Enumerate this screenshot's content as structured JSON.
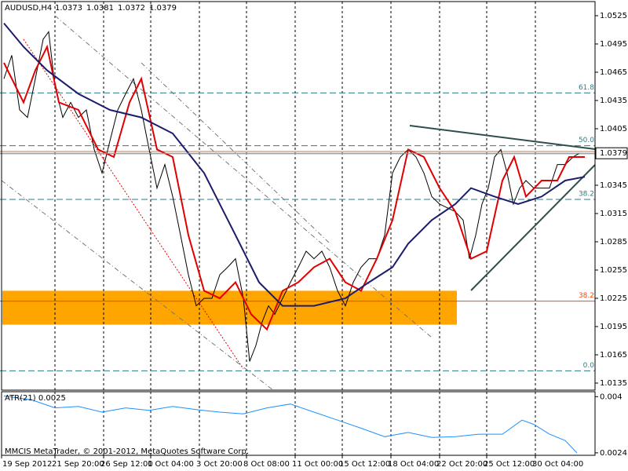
{
  "chart_data": {
    "type": "line",
    "symbol": "AUDUSD,H4",
    "ohlc": [
      1.0373,
      1.0381,
      1.0372,
      1.0379
    ],
    "last_price": 1.0379,
    "xlim": [
      0,
      758
    ],
    "ylim": [
      1.01275,
      1.054
    ],
    "xticks": [
      {
        "value": 2,
        "label": "19 Sep 2012"
      },
      {
        "value": 70,
        "label": "21 Sep 20:00"
      },
      {
        "value": 132,
        "label": "26 Sep 12:00"
      },
      {
        "value": 192,
        "label": "1 Oct 04:00"
      },
      {
        "value": 254,
        "label": "3 Oct 20:00"
      },
      {
        "value": 314,
        "label": "8 Oct 08:00"
      },
      {
        "value": 376,
        "label": "11 Oct 00:00"
      },
      {
        "value": 436,
        "label": "15 Oct 12:00"
      },
      {
        "value": 498,
        "label": "18 Oct 04:00"
      },
      {
        "value": 560,
        "label": "22 Oct 20:00"
      },
      {
        "value": 620,
        "label": "25 Oct 12:00"
      },
      {
        "value": 682,
        "label": "30 Oct 04:00"
      }
    ],
    "yticks": [
      1.0525,
      1.0495,
      1.0465,
      1.0435,
      1.0405,
      1.0345,
      1.0315,
      1.0285,
      1.0255,
      1.0225,
      1.0195,
      1.0165,
      1.0135
    ],
    "grid": true,
    "series": [
      {
        "name": "Close",
        "color": "#000000",
        "x": [
          5,
          15,
          25,
          35,
          45,
          55,
          62,
          70,
          80,
          90,
          100,
          110,
          120,
          130,
          140,
          150,
          160,
          170,
          180,
          190,
          200,
          210,
          220,
          230,
          240,
          250,
          260,
          270,
          280,
          290,
          300,
          310,
          318,
          326,
          334,
          342,
          350,
          360,
          370,
          380,
          390,
          400,
          410,
          420,
          430,
          440,
          450,
          460,
          470,
          480,
          490,
          500,
          510,
          520,
          530,
          540,
          550,
          560,
          570,
          580,
          590,
          598,
          606,
          614,
          622,
          630,
          638,
          646,
          654,
          662,
          670,
          680,
          690,
          700,
          710,
          720,
          730,
          738
        ],
        "values": [
          1.0458,
          1.0483,
          1.0425,
          1.0417,
          1.0458,
          1.05,
          1.0508,
          1.045,
          1.0417,
          1.0433,
          1.0417,
          1.0425,
          1.0383,
          1.0358,
          1.0392,
          1.0425,
          1.0442,
          1.0458,
          1.0425,
          1.0383,
          1.0342,
          1.0367,
          1.0333,
          1.0292,
          1.025,
          1.0217,
          1.0225,
          1.0225,
          1.025,
          1.0258,
          1.0267,
          1.0225,
          1.0158,
          1.0175,
          1.02,
          1.0217,
          1.0208,
          1.0225,
          1.0242,
          1.0258,
          1.0275,
          1.0267,
          1.0275,
          1.0258,
          1.0233,
          1.0217,
          1.0242,
          1.0258,
          1.0267,
          1.0267,
          1.0292,
          1.0358,
          1.0375,
          1.0383,
          1.0375,
          1.0358,
          1.0333,
          1.0325,
          1.0321,
          1.0317,
          1.0308,
          1.0267,
          1.0292,
          1.0325,
          1.0342,
          1.0375,
          1.0383,
          1.0358,
          1.0325,
          1.0342,
          1.035,
          1.0342,
          1.0342,
          1.0342,
          1.0367,
          1.0367,
          1.0375,
          1.0379
        ]
      },
      {
        "name": "Fast MA",
        "color": "#e00000",
        "x": [
          5,
          30,
          45,
          60,
          75,
          100,
          125,
          145,
          165,
          180,
          200,
          220,
          240,
          260,
          280,
          300,
          320,
          340,
          360,
          380,
          400,
          420,
          440,
          460,
          480,
          500,
          520,
          540,
          560,
          580,
          600,
          620,
          640,
          655,
          670,
          690,
          710,
          725,
          745
        ],
        "values": [
          1.0475,
          1.0433,
          1.0467,
          1.0492,
          1.0433,
          1.0425,
          1.0383,
          1.0375,
          1.0433,
          1.0458,
          1.0383,
          1.0375,
          1.0292,
          1.0233,
          1.0225,
          1.0242,
          1.0208,
          1.0192,
          1.0233,
          1.0242,
          1.0258,
          1.0267,
          1.0242,
          1.0233,
          1.0267,
          1.0308,
          1.0383,
          1.0375,
          1.0342,
          1.0317,
          1.0267,
          1.0275,
          1.035,
          1.0375,
          1.0333,
          1.035,
          1.035,
          1.0375,
          1.0375
        ]
      },
      {
        "name": "Slow MA",
        "color": "#1c1c6e",
        "x": [
          5,
          30,
          60,
          100,
          140,
          180,
          220,
          260,
          300,
          330,
          360,
          400,
          440,
          470,
          500,
          520,
          550,
          580,
          600,
          630,
          660,
          690,
          720,
          745
        ],
        "values": [
          1.0517,
          1.0492,
          1.0467,
          1.0442,
          1.0425,
          1.0417,
          1.04,
          1.0358,
          1.0292,
          1.0242,
          1.0217,
          1.0217,
          1.0225,
          1.0242,
          1.0258,
          1.0283,
          1.0308,
          1.0325,
          1.0342,
          1.0333,
          1.0325,
          1.0333,
          1.035,
          1.0354
        ]
      }
    ],
    "levels": [
      {
        "label": "61.8",
        "price": 1.0443,
        "color": "#2e7d86"
      },
      {
        "label": "50.0",
        "price": 1.0387,
        "color": "#2e7d86"
      },
      {
        "label": "38.2",
        "price": 1.033,
        "color": "#2e7d86"
      },
      {
        "label": "0.0",
        "price": 1.0148,
        "color": "#2e7d86"
      },
      {
        "label": "38.2",
        "price": 1.0222,
        "color": "#ff4500"
      }
    ],
    "zone": {
      "top": 1.0233,
      "bottom": 1.0197,
      "color": "#ffa500"
    },
    "atr": {
      "label": "ATR(21) 0.0025",
      "color": "#1e90ff",
      "ylim": [
        0.00233,
        0.00414
      ],
      "yticks": [
        0.004,
        0.0024
      ],
      "x": [
        5,
        40,
        70,
        100,
        130,
        160,
        190,
        220,
        250,
        280,
        310,
        340,
        370,
        400,
        430,
        460,
        490,
        520,
        550,
        580,
        610,
        640,
        665,
        680,
        700,
        720,
        735
      ],
      "values": [
        0.00402,
        0.00391,
        0.00368,
        0.00372,
        0.00356,
        0.00368,
        0.00361,
        0.00372,
        0.00363,
        0.00356,
        0.00351,
        0.00368,
        0.00379,
        0.00356,
        0.00333,
        0.0031,
        0.00286,
        0.00298,
        0.00284,
        0.00286,
        0.00293,
        0.00293,
        0.00333,
        0.00321,
        0.00293,
        0.00275,
        0.0024
      ]
    },
    "footer": "MMCIS MetaTrader, © 2001-2012, MetaQuotes Software Corp."
  }
}
